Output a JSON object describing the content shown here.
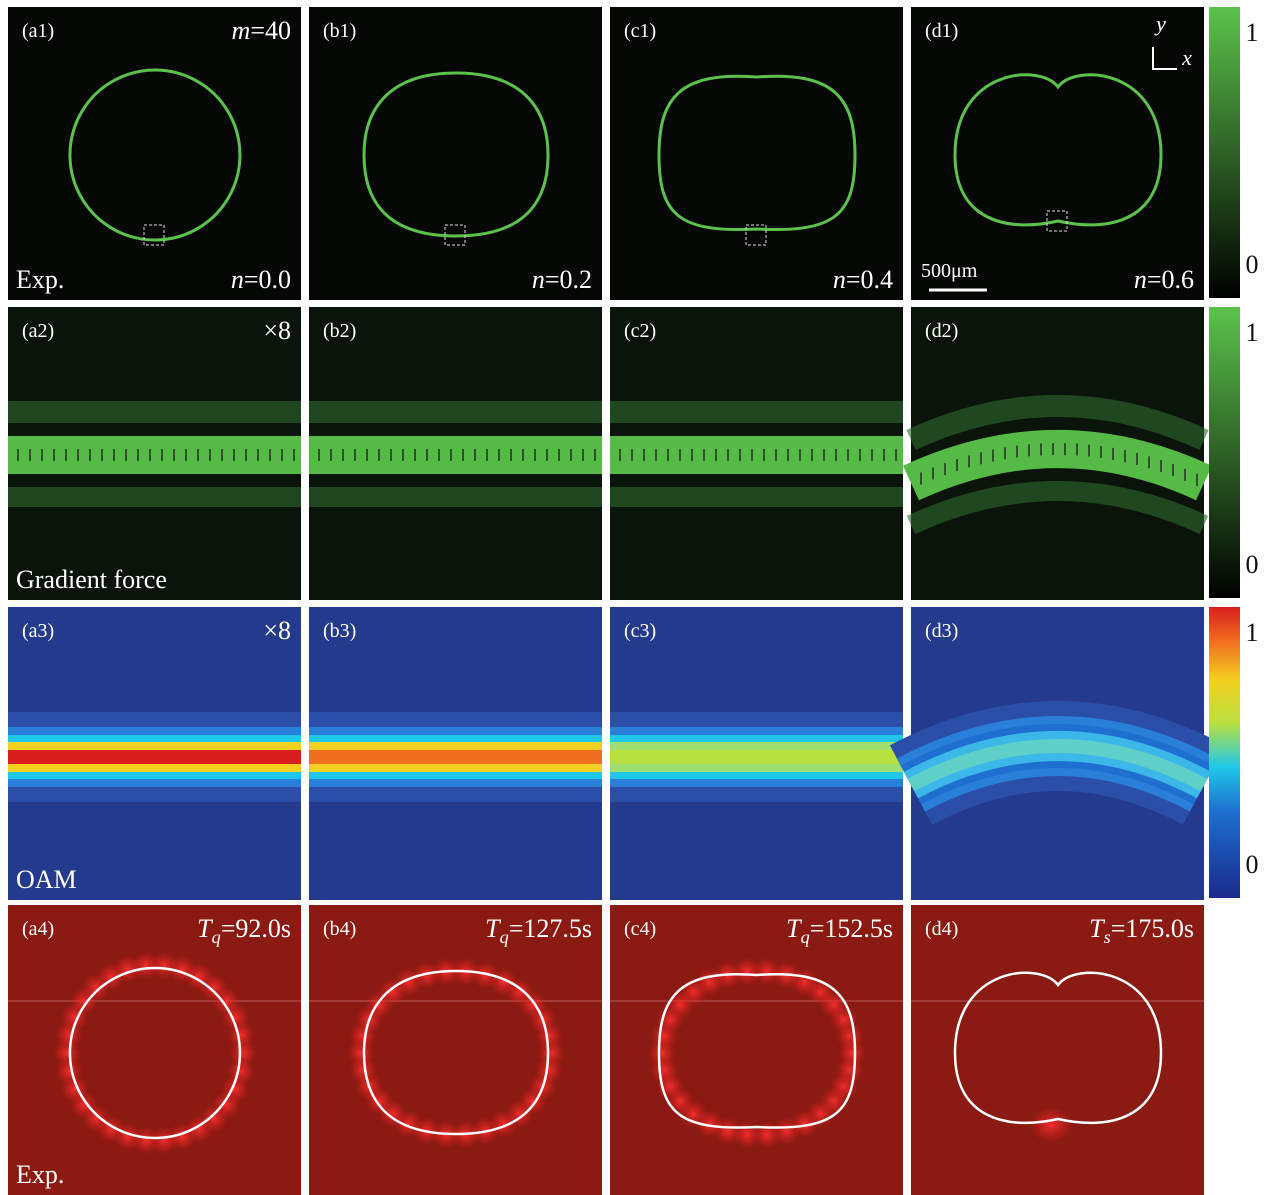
{
  "panels": [
    [
      {
        "label": "(a1)",
        "top_right": {
          "var": "m",
          "rest": "=40"
        },
        "bottom_left": "Exp.",
        "bottom_right": {
          "var": "n",
          "rest": "=0.0"
        }
      },
      {
        "label": "(b1)",
        "bottom_right": {
          "var": "n",
          "rest": "=0.2"
        }
      },
      {
        "label": "(c1)",
        "bottom_right": {
          "var": "n",
          "rest": "=0.4"
        }
      },
      {
        "label": "(d1)",
        "bottom_right": {
          "var": "n",
          "rest": "=0.6"
        },
        "scale_bar": "500μm",
        "axis_y": "y",
        "axis_x": "x"
      }
    ],
    [
      {
        "label": "(a2)",
        "top_right": "×8",
        "bottom_left": "Gradient force"
      },
      {
        "label": "(b2)"
      },
      {
        "label": "(c2)"
      },
      {
        "label": "(d2)"
      }
    ],
    [
      {
        "label": "(a3)",
        "top_right": "×8",
        "bottom_left": "OAM"
      },
      {
        "label": "(b3)"
      },
      {
        "label": "(c3)"
      },
      {
        "label": "(d3)"
      }
    ],
    [
      {
        "label": "(a4)",
        "top_right": {
          "symbol": "T",
          "sub": "q",
          "rest": "=92.0s"
        },
        "bottom_left": "Exp."
      },
      {
        "label": "(b4)",
        "top_right": {
          "symbol": "T",
          "sub": "q",
          "rest": "=127.5s"
        }
      },
      {
        "label": "(c4)",
        "top_right": {
          "symbol": "T",
          "sub": "q",
          "rest": "=152.5s"
        }
      },
      {
        "label": "(d4)",
        "top_right": {
          "symbol": "T",
          "sub": "s",
          "rest": "=175.0s"
        }
      }
    ]
  ],
  "colorbars": [
    {
      "max": "1",
      "min": "0"
    },
    {
      "max": "1",
      "min": "0"
    },
    {
      "max": "1",
      "min": "0"
    }
  ]
}
